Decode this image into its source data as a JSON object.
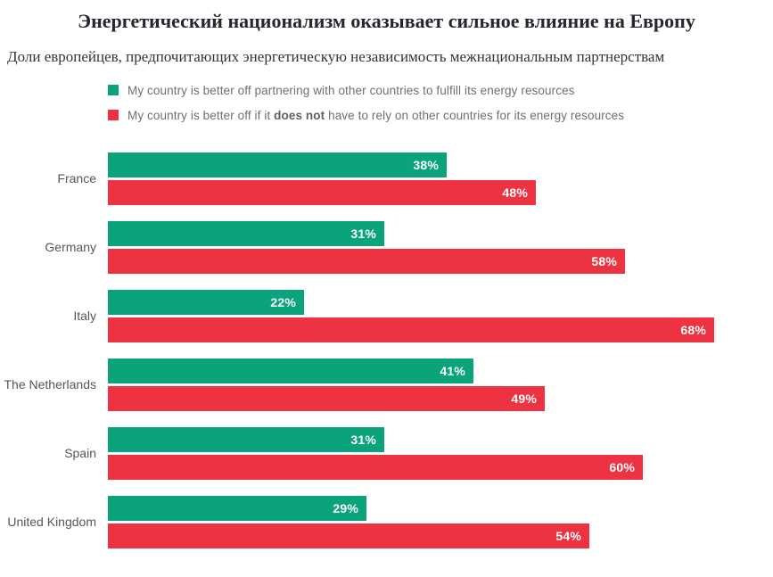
{
  "header": {
    "title": "Энергетический национализм оказывает сильное влияние на Европу",
    "subtitle": "Доли европейцев, предпочитающих энергетическую независимость межнациональным партнерствам"
  },
  "legend": {
    "items": [
      {
        "swatch_color": "#0aa37c",
        "prefix": "My country is better off partnering with other countries to fulfill its energy resources",
        "bold": "",
        "suffix": ""
      },
      {
        "swatch_color": "#ed3241",
        "prefix": "My country is better off if it ",
        "bold": "does not",
        "suffix": " have to rely on other countries for its energy resources"
      }
    ]
  },
  "chart_data": {
    "type": "bar",
    "orientation": "horizontal",
    "title": "Энергетический национализм оказывает сильное влияние на Европу",
    "subtitle": "Доли европейцев, предпочитающих энергетическую независимость межнациональным партнерствам",
    "value_suffix": "%",
    "axis_max_percent": 68,
    "grid": false,
    "legend_position": "top-left",
    "categories": [
      "France",
      "Germany",
      "Italy",
      "The Netherlands",
      "Spain",
      "United Kingdom"
    ],
    "series": [
      {
        "name": "My country is better off partnering with other countries to fulfill its energy resources",
        "color": "#0aa37c",
        "values": [
          38,
          31,
          22,
          41,
          31,
          29
        ],
        "labels": [
          "38%",
          "31%",
          "22%",
          "41%",
          "31%",
          "29%"
        ]
      },
      {
        "name": "My country is better off if it does not have to rely on other countries for its energy resources",
        "color": "#ed3241",
        "values": [
          48,
          58,
          68,
          49,
          60,
          54
        ],
        "labels": [
          "48%",
          "58%",
          "68%",
          "49%",
          "60%",
          "54%"
        ]
      }
    ]
  }
}
